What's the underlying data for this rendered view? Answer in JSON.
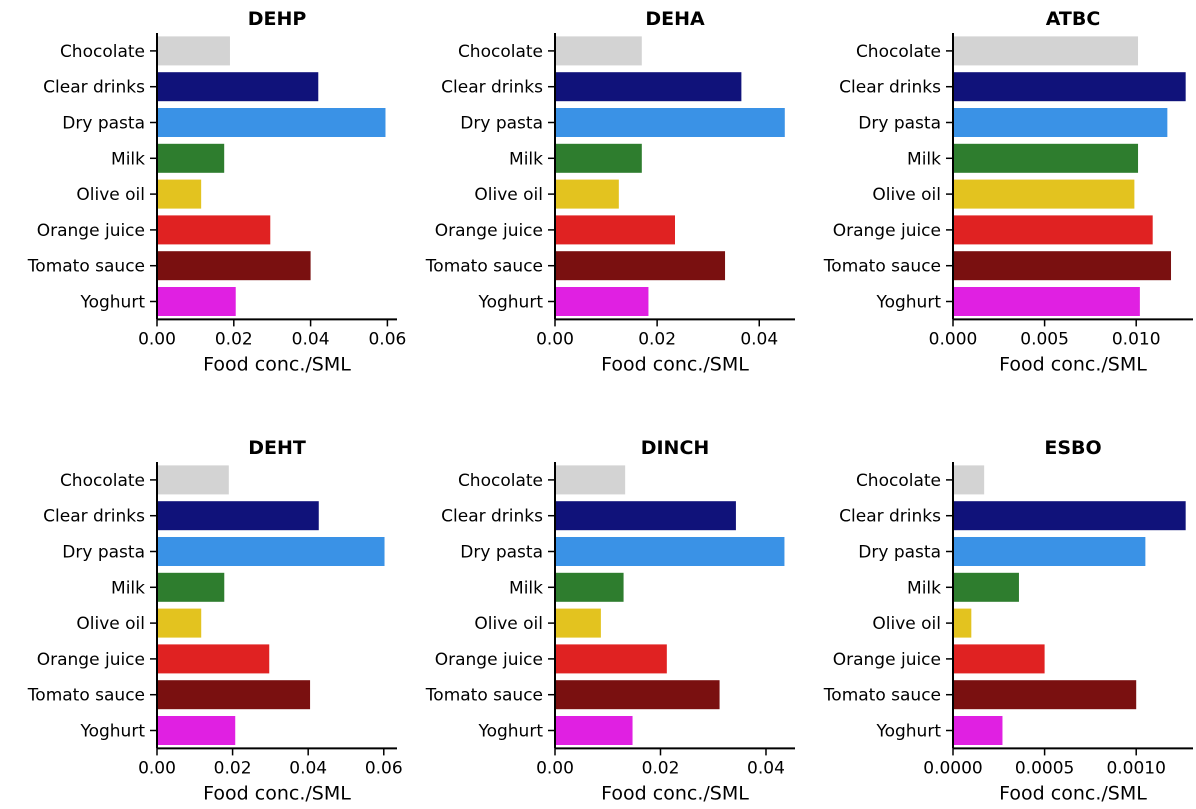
{
  "colors": {
    "Chocolate": "#d3d3d3",
    "Clear drinks": "#10127a",
    "Dry pasta": "#3a92e6",
    "Milk": "#2e7d2e",
    "Olive oil": "#e3c31f",
    "Orange juice": "#e02222",
    "Tomato sauce": "#7a1010",
    "Yoghurt": "#e020e2"
  },
  "chart_data": [
    {
      "type": "bar",
      "orientation": "horizontal",
      "title": "DEHP",
      "xlabel": "Food conc./SML",
      "categories": [
        "Chocolate",
        "Clear drinks",
        "Dry pasta",
        "Milk",
        "Olive oil",
        "Orange juice",
        "Tomato sauce",
        "Yoghurt"
      ],
      "values": [
        0.019,
        0.042,
        0.0595,
        0.0175,
        0.0115,
        0.0295,
        0.04,
        0.0205
      ],
      "xlim": [
        0,
        0.0625
      ],
      "xticks": [
        0,
        0.02,
        0.04,
        0.06
      ],
      "xticklabels": [
        "0.00",
        "0.02",
        "0.04",
        "0.06"
      ]
    },
    {
      "type": "bar",
      "orientation": "horizontal",
      "title": "DEHA",
      "xlabel": "Food conc./SML",
      "categories": [
        "Chocolate",
        "Clear drinks",
        "Dry pasta",
        "Milk",
        "Olive oil",
        "Orange juice",
        "Tomato sauce",
        "Yoghurt"
      ],
      "values": [
        0.017,
        0.0365,
        0.045,
        0.017,
        0.0125,
        0.0235,
        0.0333,
        0.0183
      ],
      "xlim": [
        0,
        0.047
      ],
      "xticks": [
        0,
        0.02,
        0.04
      ],
      "xticklabels": [
        "0.00",
        "0.02",
        "0.04"
      ]
    },
    {
      "type": "bar",
      "orientation": "horizontal",
      "title": "ATBC",
      "xlabel": "Food conc./SML",
      "categories": [
        "Chocolate",
        "Clear drinks",
        "Dry pasta",
        "Milk",
        "Olive oil",
        "Orange juice",
        "Tomato sauce",
        "Yoghurt"
      ],
      "values": [
        0.0101,
        0.0127,
        0.0117,
        0.0101,
        0.0099,
        0.0109,
        0.0119,
        0.0102
      ],
      "xlim": [
        0,
        0.0131
      ],
      "xticks": [
        0,
        0.005,
        0.01
      ],
      "xticklabels": [
        "0.000",
        "0.005",
        "0.010"
      ]
    },
    {
      "type": "bar",
      "orientation": "horizontal",
      "title": "DEHT",
      "xlabel": "Food conc./SML",
      "categories": [
        "Chocolate",
        "Clear drinks",
        "Dry pasta",
        "Milk",
        "Olive oil",
        "Orange juice",
        "Tomato sauce",
        "Yoghurt"
      ],
      "values": [
        0.019,
        0.0428,
        0.0602,
        0.0178,
        0.0117,
        0.0297,
        0.0405,
        0.0207
      ],
      "xlim": [
        0,
        0.0635
      ],
      "xticks": [
        0,
        0.02,
        0.04,
        0.06
      ],
      "xticklabels": [
        "0.00",
        "0.02",
        "0.04",
        "0.06"
      ]
    },
    {
      "type": "bar",
      "orientation": "horizontal",
      "title": "DINCH",
      "xlabel": "Food conc./SML",
      "categories": [
        "Chocolate",
        "Clear drinks",
        "Dry pasta",
        "Milk",
        "Olive oil",
        "Orange juice",
        "Tomato sauce",
        "Yoghurt"
      ],
      "values": [
        0.0133,
        0.0343,
        0.0435,
        0.013,
        0.0087,
        0.0212,
        0.0312,
        0.0147
      ],
      "xlim": [
        0,
        0.0455
      ],
      "xticks": [
        0,
        0.02,
        0.04
      ],
      "xticklabels": [
        "0.00",
        "0.02",
        "0.04"
      ]
    },
    {
      "type": "bar",
      "orientation": "horizontal",
      "title": "ESBO",
      "xlabel": "Food conc./SML",
      "categories": [
        "Chocolate",
        "Clear drinks",
        "Dry pasta",
        "Milk",
        "Olive oil",
        "Orange juice",
        "Tomato sauce",
        "Yoghurt"
      ],
      "values": [
        0.00017,
        0.00127,
        0.00105,
        0.00036,
        0.0001,
        0.0005,
        0.001,
        0.00027
      ],
      "xlim": [
        0,
        0.00131
      ],
      "xticks": [
        0,
        0.0005,
        0.001
      ],
      "xticklabels": [
        "0.0000",
        "0.0005",
        "0.0010"
      ]
    }
  ]
}
